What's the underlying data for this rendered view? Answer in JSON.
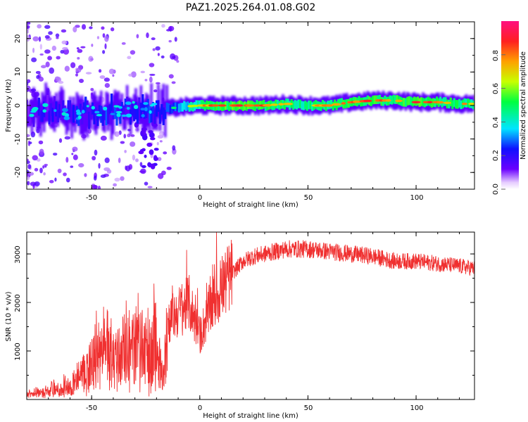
{
  "figure_title": "PAZ1.2025.264.01.08.G02",
  "colors": {
    "snr_line": "#f03030",
    "ridge_high": "#ff2a2a",
    "ridge_mid": "#7fff00",
    "ridge_low": "#00e5ff",
    "ridge_base": "#3a00ff",
    "scatter": "#9b30ff"
  },
  "chart_data": [
    {
      "type": "heatmap",
      "xlabel": "Height of straight line (km)",
      "ylabel": "Frequency (Hz)",
      "xlim": [
        -80,
        127
      ],
      "ylim": [
        -25,
        25
      ],
      "x_ticks": [
        -50,
        0,
        50,
        100
      ],
      "x_tick_labels": [
        "-50",
        "0",
        "50",
        "100"
      ],
      "y_ticks": [
        -20,
        -10,
        0,
        10,
        20
      ],
      "y_tick_labels": [
        "-20",
        "-10",
        "0",
        "10",
        "20"
      ],
      "grid": false,
      "colorbar": {
        "label": "Normalized spectral amplitude",
        "range": [
          0,
          1
        ],
        "ticks": [
          0.0,
          0.2,
          0.4,
          0.6,
          0.8
        ],
        "tick_labels": [
          "0.0",
          "0.2",
          "0.4",
          "0.6",
          "0.8"
        ]
      },
      "ridge": {
        "height_km": [
          -80,
          -70,
          -60,
          -50,
          -40,
          -30,
          -20,
          -10,
          0,
          10,
          20,
          30,
          40,
          50,
          60,
          70,
          80,
          90,
          100,
          110,
          120,
          127
        ],
        "frequency_hz": [
          -2,
          -1.5,
          -2.5,
          -2,
          -1.5,
          -1,
          -1.5,
          -0.5,
          0,
          0,
          0,
          0,
          0.5,
          0,
          0,
          1,
          1.5,
          1.5,
          1,
          1,
          0.5,
          0.5
        ],
        "amplitude": [
          0.15,
          0.2,
          0.25,
          0.3,
          0.3,
          0.25,
          0.35,
          0.45,
          0.7,
          0.85,
          0.85,
          0.8,
          0.75,
          0.7,
          0.75,
          0.8,
          0.85,
          0.8,
          0.85,
          0.8,
          0.75,
          0.7
        ]
      }
    },
    {
      "type": "line",
      "xlabel": "Height of straight line (km)",
      "ylabel": "SNR (10 * v/v)",
      "xlim": [
        -80,
        127
      ],
      "ylim": [
        0,
        3450
      ],
      "x_ticks": [
        -50,
        0,
        50,
        100
      ],
      "x_tick_labels": [
        "-50",
        "0",
        "50",
        "100"
      ],
      "y_ticks": [
        1000,
        2000,
        3000
      ],
      "y_tick_labels": [
        "1000",
        "2000",
        "3000"
      ],
      "grid": false,
      "series": [
        {
          "name": "SNR",
          "x": [
            -80,
            -70,
            -60,
            -55,
            -50,
            -45,
            -40,
            -35,
            -30,
            -25,
            -20,
            -17,
            -15,
            -10,
            -7,
            -5,
            0,
            5,
            10,
            15,
            20,
            25,
            30,
            40,
            50,
            60,
            70,
            80,
            90,
            100,
            110,
            120,
            127
          ],
          "y": [
            100,
            150,
            250,
            450,
            700,
            900,
            900,
            950,
            1050,
            950,
            1050,
            400,
            1600,
            1800,
            1900,
            2000,
            1300,
            1900,
            2300,
            2600,
            2850,
            2950,
            3000,
            3100,
            3100,
            3050,
            3000,
            2950,
            2850,
            2850,
            2800,
            2750,
            2700
          ]
        }
      ]
    }
  ]
}
